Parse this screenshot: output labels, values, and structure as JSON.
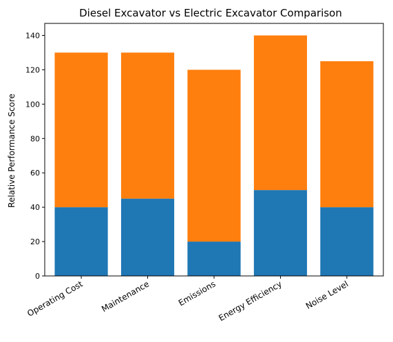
{
  "chart_data": {
    "type": "bar",
    "stacked": true,
    "title": "Diesel Excavator vs Electric Excavator Comparison",
    "xlabel": "",
    "ylabel": "Relative Performance Score",
    "categories": [
      "Operating Cost",
      "Maintenance",
      "Emissions",
      "Energy Efficiency",
      "Noise Level"
    ],
    "series": [
      {
        "values": [
          40,
          45,
          20,
          50,
          40
        ],
        "color": "#1f77b4"
      },
      {
        "values": [
          90,
          85,
          100,
          90,
          85
        ],
        "color": "#ff7f0e"
      }
    ],
    "ylim": [
      0,
      147
    ],
    "yticks": [
      0,
      20,
      40,
      60,
      80,
      100,
      120,
      140
    ],
    "x_tick_rotation": 30,
    "grid": false,
    "legend": "none"
  }
}
